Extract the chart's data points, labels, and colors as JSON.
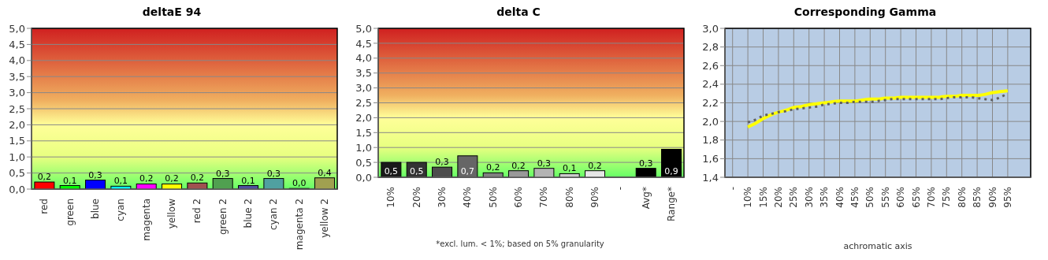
{
  "chart_data": [
    {
      "type": "bar",
      "title": "deltaE 94",
      "categories": [
        "red",
        "green",
        "blue",
        "cyan",
        "magenta",
        "yellow",
        "red 2",
        "green 2",
        "blue 2",
        "cyan 2",
        "magenta 2",
        "yellow 2"
      ],
      "values": [
        0.22,
        0.11,
        0.28,
        0.09,
        0.16,
        0.16,
        0.19,
        0.33,
        0.11,
        0.33,
        0.02,
        0.35
      ],
      "colors": [
        "#ff0000",
        "#00ff00",
        "#0000ff",
        "#00ffff",
        "#ff00ff",
        "#ffff00",
        "#a05050",
        "#50a050",
        "#5050a0",
        "#50a0a0",
        "#a050a0",
        "#a0a050"
      ],
      "value_labels": [
        "0,2",
        "0,1",
        "0,3",
        "0,1",
        "0,2",
        "0,2",
        "0,2",
        "0,3",
        "0,1",
        "0,3",
        "0,0",
        "0,4"
      ],
      "ylim": [
        0,
        5
      ],
      "yticks": [
        {
          "value": 0,
          "label": "0,0"
        },
        {
          "value": 0.5,
          "label": "0,5"
        },
        {
          "value": 1,
          "label": "1,0"
        },
        {
          "value": 1.5,
          "label": "1,5"
        },
        {
          "value": 2,
          "label": "2,0"
        },
        {
          "value": 2.5,
          "label": "2,5"
        },
        {
          "value": 3,
          "label": "3,0"
        },
        {
          "value": 3.5,
          "label": "3,5"
        },
        {
          "value": 4,
          "label": "4,0"
        },
        {
          "value": 4.5,
          "label": "4,5"
        },
        {
          "value": 5,
          "label": "5,0"
        }
      ],
      "grid": "y"
    },
    {
      "type": "bar",
      "title": "delta C",
      "categories": [
        "10%",
        "20%",
        "30%",
        "40%",
        "50%",
        "60%",
        "70%",
        "80%",
        "90%",
        "-",
        "Avg*",
        "Range*"
      ],
      "values": [
        0.5,
        0.5,
        0.34,
        0.72,
        0.15,
        0.22,
        0.3,
        0.12,
        0.22,
        null,
        0.3,
        0.94
      ],
      "colors": [
        "#1a1a1a",
        "#333333",
        "#4d4d4d",
        "#666666",
        "#808080",
        "#999999",
        "#b3b3b3",
        "#cccccc",
        "#e6e6e6",
        "#000000",
        "#000000",
        "#000000"
      ],
      "value_labels": [
        "0,5",
        "0,5",
        "0,3",
        "0,7",
        "0,2",
        "0,2",
        "0,3",
        "0,1",
        "0,2",
        null,
        "0,3",
        "0,9"
      ],
      "ylim": [
        0,
        5
      ],
      "yticks": [
        {
          "value": 0,
          "label": "0,0"
        },
        {
          "value": 0.5,
          "label": "0,5"
        },
        {
          "value": 1,
          "label": "1,0"
        },
        {
          "value": 1.5,
          "label": "1,5"
        },
        {
          "value": 2,
          "label": "2,0"
        },
        {
          "value": 2.5,
          "label": "2,5"
        },
        {
          "value": 3,
          "label": "3,0"
        },
        {
          "value": 3.5,
          "label": "3,5"
        },
        {
          "value": 4,
          "label": "4,0"
        },
        {
          "value": 4.5,
          "label": "4,5"
        },
        {
          "value": 5,
          "label": "5,0"
        }
      ],
      "grid": "y",
      "annotations": [
        "*excl. lum. < 1%; based on 5% granularity"
      ]
    },
    {
      "type": "line",
      "title": "Corresponding Gamma",
      "xlabel": "achromatic axis",
      "x": [
        10,
        12.5,
        15,
        17.5,
        20,
        22.5,
        25,
        27.5,
        30,
        32.5,
        35,
        37.5,
        40,
        42.5,
        45,
        47.5,
        50,
        52.5,
        55,
        57.5,
        60,
        62.5,
        65,
        67.5,
        70,
        72.5,
        75,
        77.5,
        80,
        82.5,
        85,
        87.5,
        90,
        92.5,
        95
      ],
      "series": [
        {
          "color": "#ffff00",
          "line_style": "solid",
          "values": [
            1.94,
            1.98,
            2.03,
            2.07,
            2.1,
            2.12,
            2.15,
            2.16,
            2.18,
            2.19,
            2.2,
            2.21,
            2.22,
            2.22,
            2.22,
            2.23,
            2.24,
            2.24,
            2.25,
            2.25,
            2.26,
            2.26,
            2.26,
            2.26,
            2.26,
            2.26,
            2.27,
            2.27,
            2.28,
            2.28,
            2.28,
            2.29,
            2.31,
            2.32,
            2.33
          ]
        },
        {
          "color": "#606060",
          "line_style": "dotted",
          "values": [
            1.99,
            2.02,
            2.06,
            2.08,
            2.1,
            2.11,
            2.13,
            2.14,
            2.15,
            2.16,
            2.18,
            2.19,
            2.2,
            2.2,
            2.21,
            2.21,
            2.21,
            2.22,
            2.23,
            2.24,
            2.24,
            2.24,
            2.24,
            2.24,
            2.24,
            2.24,
            2.25,
            2.26,
            2.26,
            2.26,
            2.25,
            2.24,
            2.23,
            2.26,
            2.3
          ]
        }
      ],
      "marker": "none",
      "xlim": [
        2.5,
        102.5
      ],
      "xticks": [
        {
          "value": 5,
          "label": "-"
        },
        {
          "value": 10,
          "label": "10%"
        },
        {
          "value": 15,
          "label": "15%"
        },
        {
          "value": 20,
          "label": "20%"
        },
        {
          "value": 25,
          "label": "25%"
        },
        {
          "value": 30,
          "label": "30%"
        },
        {
          "value": 35,
          "label": "35%"
        },
        {
          "value": 40,
          "label": "40%"
        },
        {
          "value": 45,
          "label": "45%"
        },
        {
          "value": 50,
          "label": "50%"
        },
        {
          "value": 55,
          "label": "55%"
        },
        {
          "value": 60,
          "label": "60%"
        },
        {
          "value": 65,
          "label": "65%"
        },
        {
          "value": 70,
          "label": "70%"
        },
        {
          "value": 75,
          "label": "75%"
        },
        {
          "value": 80,
          "label": "80%"
        },
        {
          "value": 85,
          "label": "85%"
        },
        {
          "value": 90,
          "label": "90%"
        },
        {
          "value": 95,
          "label": "95%"
        }
      ],
      "ylim": [
        1.4,
        3.0
      ],
      "yticks": [
        {
          "value": 1.4,
          "label": "1,4"
        },
        {
          "value": 1.6,
          "label": "1,6"
        },
        {
          "value": 1.8,
          "label": "1,8"
        },
        {
          "value": 2.0,
          "label": "2,0"
        },
        {
          "value": 2.2,
          "label": "2,2"
        },
        {
          "value": 2.4,
          "label": "2,4"
        },
        {
          "value": 2.6,
          "label": "2,6"
        },
        {
          "value": 2.8,
          "label": "2,8"
        },
        {
          "value": 3.0,
          "label": "3,0"
        }
      ],
      "grid": true
    }
  ]
}
